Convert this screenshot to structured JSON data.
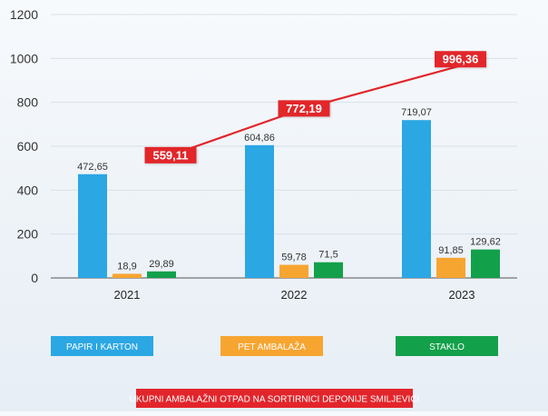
{
  "chart_data": {
    "type": "bar",
    "title": "UKUPNI AMBALAŽNI OTPAD NA SORTIRNICI DEPONIJE SMILJEVIĆI",
    "categories": [
      "2021",
      "2022",
      "2023"
    ],
    "series": [
      {
        "name": "PAPIR I KARTON",
        "color": "#2ba7e4",
        "values": [
          472.65,
          604.86,
          719.07
        ],
        "labels": [
          "472,65",
          "604,86",
          "719,07"
        ]
      },
      {
        "name": "PET AMBALAŽA",
        "color": "#f7a531",
        "values": [
          18.9,
          59.78,
          91.85
        ],
        "labels": [
          "18,9",
          "59,78",
          "91,85"
        ]
      },
      {
        "name": "STAKLO",
        "color": "#13a04a",
        "values": [
          29.89,
          71.5,
          129.62
        ],
        "labels": [
          "29,89",
          "71,5",
          "129,62"
        ]
      }
    ],
    "total": {
      "name": "UKUPNI AMBALAŽNI OTPAD NA SORTIRNICI DEPONIJE SMILJEVIĆI",
      "type": "line",
      "color": "#e2252b",
      "values": [
        559.11,
        772.19,
        996.36
      ],
      "labels": [
        "559,11",
        "772,19",
        "996,36"
      ]
    },
    "yticks": [
      0,
      200,
      400,
      600,
      800,
      1000,
      1200
    ],
    "ylim": [
      0,
      1200
    ],
    "xlabel": "",
    "ylabel": "",
    "grid": true,
    "legend_position": "bottom"
  }
}
